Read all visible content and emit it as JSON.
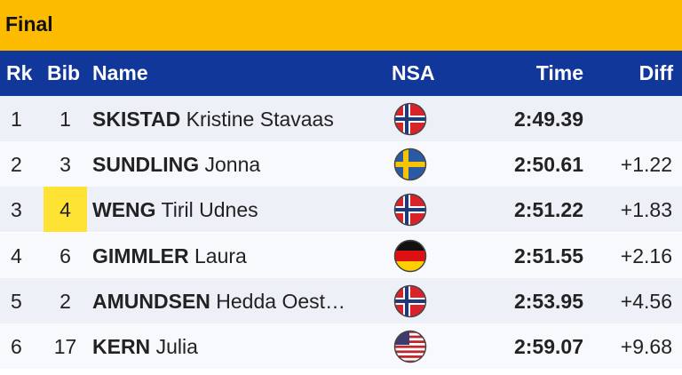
{
  "header": {
    "title": "Final"
  },
  "table": {
    "columns": [
      "Rk",
      "Bib",
      "Name",
      "NSA",
      "Time",
      "Diff"
    ],
    "rows": [
      {
        "rank": 1,
        "bib": 1,
        "surname": "SKISTAD",
        "given": "Kristine Stavaas",
        "time": "2:49.39"
      },
      {
        "rank": 2,
        "bib": 3,
        "surname": "SUNDLING",
        "given": "Jonna",
        "time": "2:50.61",
        "diff": "+1.22"
      },
      {
        "rank": 3,
        "bib": 4,
        "surname": "WENG",
        "given": "Tiril Udnes",
        "time": "2:51.22",
        "diff": "+1.83"
      },
      {
        "rank": 4,
        "bib": 6,
        "surname": "GIMMLER",
        "given": "Laura",
        "time": "2:51.55",
        "diff": "+2.16"
      },
      {
        "rank": 5,
        "bib": 2,
        "surname": "AMUNDSEN",
        "given": "Hedda Oest…",
        "time": "2:53.95",
        "diff": "+4.56"
      },
      {
        "rank": 6,
        "bib": 17,
        "surname": "KERN",
        "given": "Julia",
        "time": "2:59.07",
        "diff": "+9.68"
      }
    ]
  }
}
